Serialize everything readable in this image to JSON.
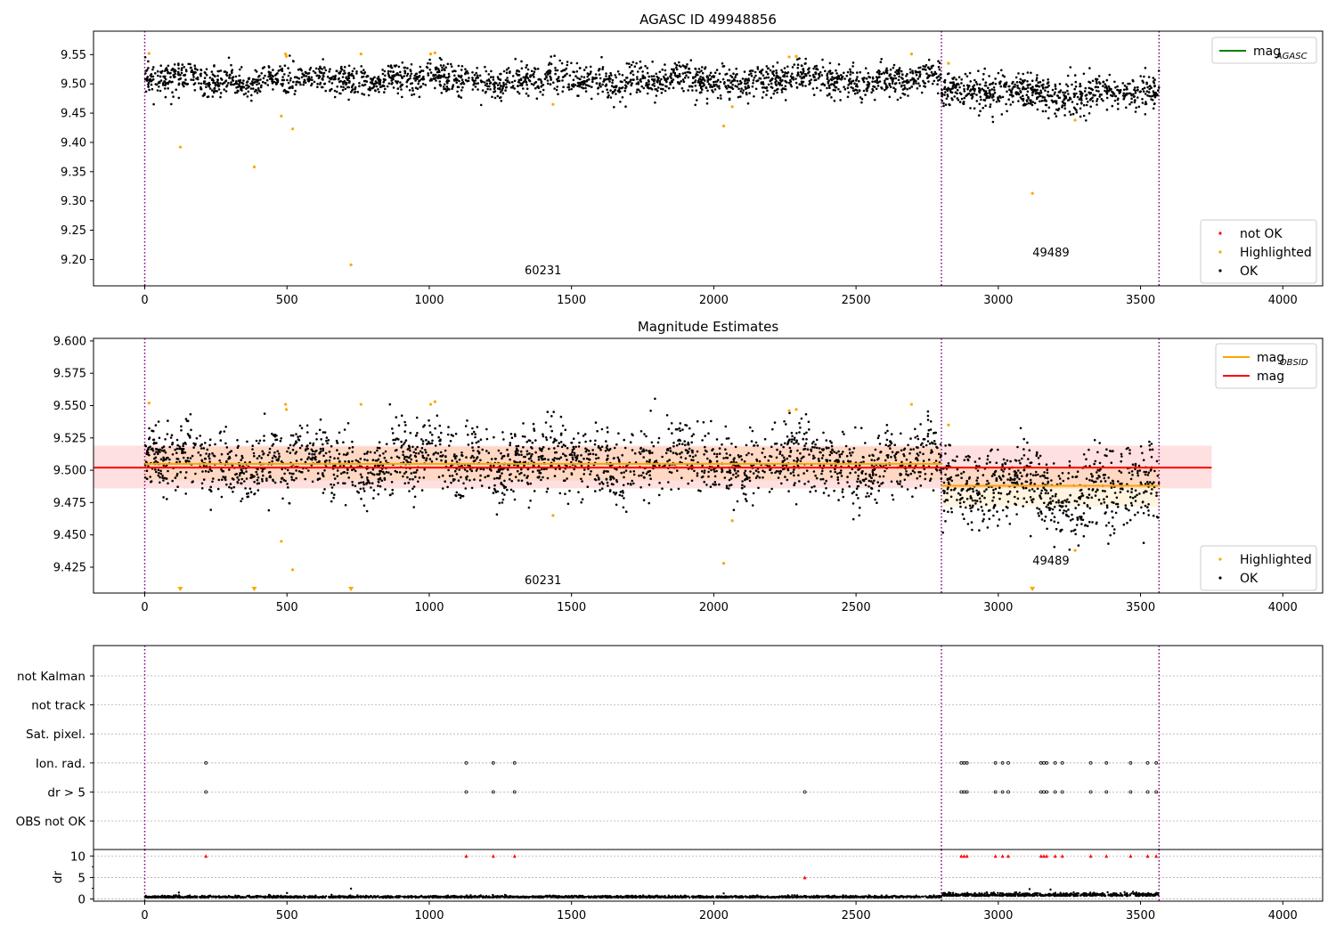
{
  "chart_data": [
    {
      "type": "scatter",
      "title": "AGASC ID 49948856",
      "xlim": [
        -180,
        4140
      ],
      "ylim": [
        9.155,
        9.59
      ],
      "xticks": [
        0,
        500,
        1000,
        1500,
        2000,
        2500,
        3000,
        3500,
        4000
      ],
      "yticks": [
        9.2,
        9.25,
        9.3,
        9.35,
        9.4,
        9.45,
        9.5,
        9.55
      ],
      "vlines": [
        0,
        2800,
        3565
      ],
      "obsid_labels": [
        {
          "text": "60231",
          "x": 1400,
          "y": 9.175
        },
        {
          "text": "49489",
          "x": 3185,
          "y": 9.205
        }
      ],
      "legend_top": {
        "position": "upper right",
        "entries": [
          {
            "label": "mag",
            "sub": "AGASC",
            "color": "#008000"
          }
        ]
      },
      "legend_bottom": {
        "position": "lower right",
        "entries": [
          {
            "label": "not OK",
            "color": "#ff0000"
          },
          {
            "label": "Highlighted",
            "color": "#ffa500"
          },
          {
            "label": "OK",
            "color": "#000000"
          }
        ]
      },
      "ok_segments": [
        {
          "x0": 0,
          "x1": 2800,
          "mean": 9.506,
          "std": 0.013
        },
        {
          "x0": 2800,
          "x1": 3565,
          "mean": 9.488,
          "std": 0.015
        }
      ],
      "highlighted": [
        {
          "x": 15,
          "y": 9.552
        },
        {
          "x": 125,
          "y": 9.392
        },
        {
          "x": 385,
          "y": 9.358
        },
        {
          "x": 480,
          "y": 9.445
        },
        {
          "x": 495,
          "y": 9.551
        },
        {
          "x": 498,
          "y": 9.547
        },
        {
          "x": 520,
          "y": 9.423
        },
        {
          "x": 725,
          "y": 9.191
        },
        {
          "x": 760,
          "y": 9.551
        },
        {
          "x": 1005,
          "y": 9.551
        },
        {
          "x": 1020,
          "y": 9.553
        },
        {
          "x": 1435,
          "y": 9.465
        },
        {
          "x": 2035,
          "y": 9.428
        },
        {
          "x": 2065,
          "y": 9.461
        },
        {
          "x": 2265,
          "y": 9.546
        },
        {
          "x": 2290,
          "y": 9.547
        },
        {
          "x": 2695,
          "y": 9.551
        },
        {
          "x": 2825,
          "y": 9.535
        },
        {
          "x": 3120,
          "y": 9.313
        },
        {
          "x": 3270,
          "y": 9.438
        }
      ]
    },
    {
      "type": "scatter",
      "title": "Magnitude Estimates",
      "xlim": [
        -180,
        4140
      ],
      "ylim": [
        9.405,
        9.602
      ],
      "xticks": [
        0,
        500,
        1000,
        1500,
        2000,
        2500,
        3000,
        3500,
        4000
      ],
      "yticks": [
        9.425,
        9.45,
        9.475,
        9.5,
        9.525,
        9.55,
        9.575,
        9.6
      ],
      "vlines": [
        0,
        2800,
        3565
      ],
      "obsid_labels": [
        {
          "text": "60231",
          "x": 1400,
          "y": 9.412
        },
        {
          "text": "49489",
          "x": 3185,
          "y": 9.427
        }
      ],
      "legend_top": {
        "position": "upper right",
        "entries": [
          {
            "label": "mag",
            "sub": "OBSID",
            "color": "#ffa500"
          },
          {
            "label": "mag",
            "color": "#ff0000"
          }
        ]
      },
      "legend_bottom": {
        "position": "lower right",
        "entries": [
          {
            "label": "Highlighted",
            "color": "#ffa500"
          },
          {
            "label": "OK",
            "color": "#000000"
          }
        ]
      },
      "mag_line": {
        "x0": -180,
        "x1": 3750,
        "value": 9.502,
        "band": [
          9.486,
          9.519
        ]
      },
      "mag_obsid": [
        {
          "x0": 0,
          "x1": 2800,
          "value": 9.505,
          "band": [
            9.492,
            9.518
          ]
        },
        {
          "x0": 2800,
          "x1": 3565,
          "value": 9.488,
          "band": [
            9.472,
            9.503
          ]
        }
      ],
      "off_scale_x": [
        125,
        385,
        725,
        3120
      ]
    },
    {
      "type": "scatter",
      "title": "",
      "xlim": [
        -180,
        4140
      ],
      "vlines": [
        0,
        2800,
        3565
      ],
      "flag_rows": [
        "not Kalman",
        "not track",
        "Sat. pixel.",
        "Ion. rad.",
        "dr > 5",
        "OBS not OK"
      ],
      "ion_rad_x": [
        215,
        1130,
        1225,
        1300,
        2870,
        2880,
        2890,
        2990,
        3015,
        3035,
        3150,
        3160,
        3170,
        3200,
        3225,
        3325,
        3380,
        3465,
        3525,
        3555
      ],
      "dr_gt5_x": [
        215,
        1130,
        1225,
        1300,
        2320,
        2870,
        2880,
        2890,
        2990,
        3015,
        3035,
        3150,
        3160,
        3170,
        3200,
        3225,
        3325,
        3380,
        3465,
        3525,
        3555
      ],
      "dr_ylabel": "dr",
      "dr_yticks": [
        0,
        5,
        10
      ],
      "dr_ylim": [
        -0.5,
        11.5
      ],
      "dr_outliers": [
        {
          "x": 120,
          "y": 1.5
        },
        {
          "x": 500,
          "y": 1.4
        },
        {
          "x": 725,
          "y": 2.4
        },
        {
          "x": 2035,
          "y": 1.3
        },
        {
          "x": 3110,
          "y": 2.3
        }
      ],
      "dr_clipped_x": [
        215,
        1130,
        1225,
        1300,
        2870,
        2880,
        2890,
        2990,
        3015,
        3035,
        3150,
        3160,
        3170,
        3200,
        3225,
        3325,
        3380,
        3465,
        3525,
        3555
      ],
      "dr_mid": [
        {
          "x": 2320,
          "y": 5.0
        }
      ]
    }
  ]
}
